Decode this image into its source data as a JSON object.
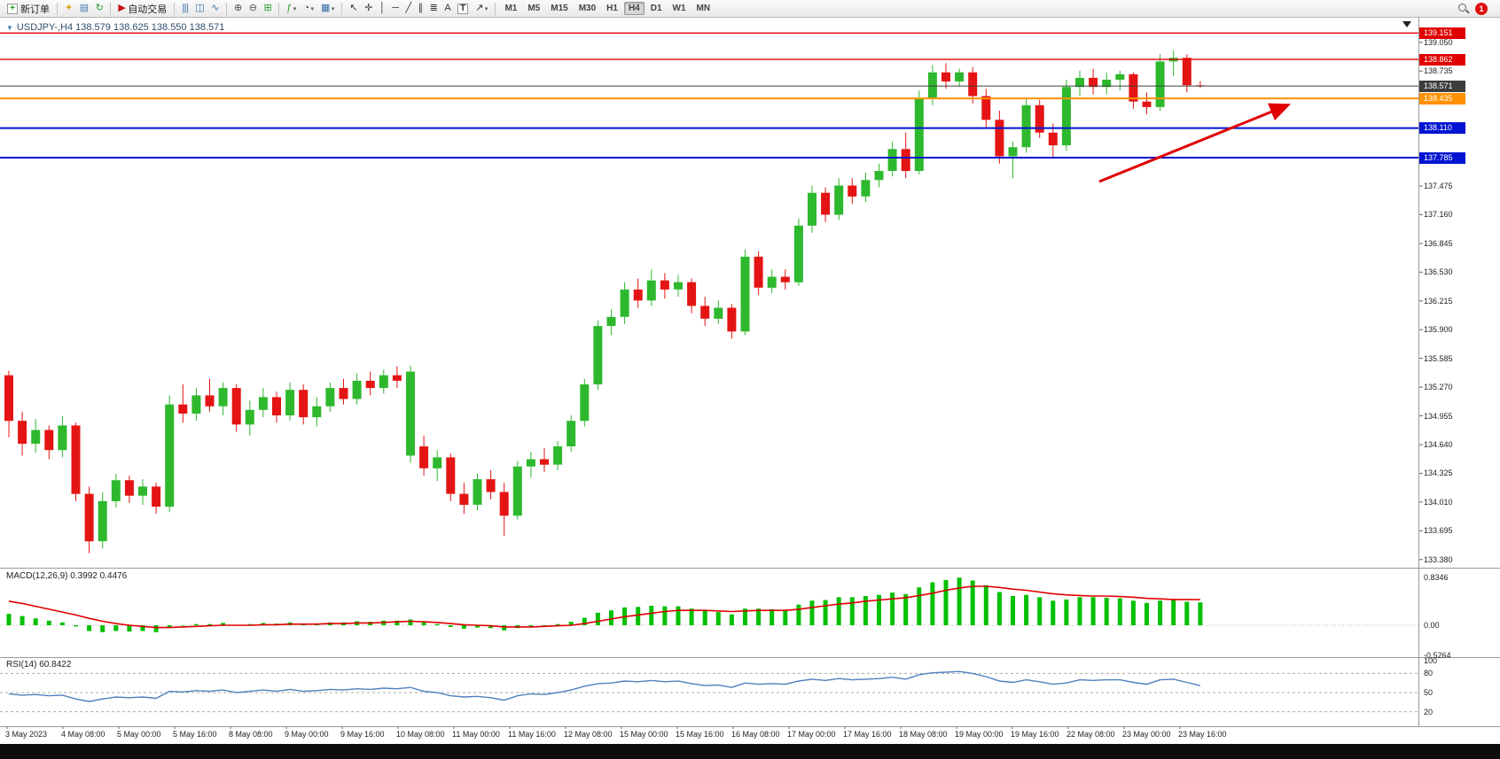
{
  "toolbar": {
    "caret_glyph": "▾",
    "groups": [
      [
        {
          "name": "new-order-button",
          "glyph": "+",
          "box": true,
          "color": "#18a018",
          "label": "新订单"
        }
      ],
      [
        {
          "name": "metaeditor-icon",
          "glyph": "✦",
          "color": "#d9a514"
        },
        {
          "name": "market-watch-icon",
          "glyph": "▤",
          "color": "#4a7ab5"
        },
        {
          "name": "refresh-icon",
          "glyph": "↻",
          "color": "#2b9a2b"
        }
      ],
      [
        {
          "name": "autotrading-button",
          "glyph": "▶",
          "color": "#c41414",
          "label": "自动交易"
        }
      ],
      [
        {
          "name": "bar-chart-icon",
          "glyph": "|||",
          "color": "#3a6ea8"
        },
        {
          "name": "candlestick-chart-icon",
          "glyph": "◫",
          "color": "#3a6ea8"
        },
        {
          "name": "line-chart-icon",
          "glyph": "∿",
          "color": "#3a6ea8"
        }
      ],
      [
        {
          "name": "zoom-in-icon",
          "glyph": "⊕",
          "color": "#4d4d4d"
        },
        {
          "name": "zoom-out-icon",
          "glyph": "⊖",
          "color": "#4d4d4d"
        },
        {
          "name": "tile-windows-icon",
          "glyph": "⊞",
          "color": "#2b9a2b"
        }
      ],
      [
        {
          "name": "indicators-icon",
          "glyph": "ƒ",
          "color": "#2b9a2b",
          "drop": true
        },
        {
          "name": "periods-icon",
          "glyph": "◔",
          "color": "#4d4d4d",
          "drop": true
        },
        {
          "name": "templates-icon",
          "glyph": "▦",
          "color": "#3a6ea8",
          "drop": true
        }
      ],
      [
        {
          "name": "cursor-icon",
          "glyph": "↖",
          "color": "#333333"
        },
        {
          "name": "crosshair-icon",
          "glyph": "✛",
          "color": "#333333"
        },
        {
          "name": "vertical-line-icon",
          "glyph": "│",
          "color": "#333333"
        },
        {
          "name": "horizontal-line-icon",
          "glyph": "─",
          "color": "#333333"
        },
        {
          "name": "trendline-icon",
          "glyph": "╱",
          "color": "#333333"
        },
        {
          "name": "channel-icon",
          "glyph": "∥",
          "color": "#333333"
        },
        {
          "name": "fibonacci-icon",
          "glyph": "≣",
          "color": "#333333"
        },
        {
          "name": "text-icon",
          "glyph": "A",
          "color": "#333333"
        },
        {
          "name": "text-label-icon",
          "glyph": "T",
          "box": true,
          "color": "#333333"
        },
        {
          "name": "arrow-objects-icon",
          "glyph": "↗",
          "color": "#333333",
          "drop": true
        }
      ],
      [
        {
          "name": "tf-m1",
          "type": "tf",
          "label": "M1"
        },
        {
          "name": "tf-m5",
          "type": "tf",
          "label": "M5"
        },
        {
          "name": "tf-m15",
          "type": "tf",
          "label": "M15"
        },
        {
          "name": "tf-m30",
          "type": "tf",
          "label": "M30"
        },
        {
          "name": "tf-h1",
          "type": "tf",
          "label": "H1"
        },
        {
          "name": "tf-h4",
          "type": "tf",
          "label": "H4",
          "active": true
        },
        {
          "name": "tf-d1",
          "type": "tf",
          "label": "D1"
        },
        {
          "name": "tf-w1",
          "type": "tf",
          "label": "W1"
        },
        {
          "name": "tf-mn",
          "type": "tf",
          "label": "MN"
        }
      ]
    ],
    "right_items": [
      {
        "name": "search-icon",
        "type": "magnifier"
      },
      {
        "name": "notification-badge",
        "type": "badge",
        "label": "1",
        "color": "#e01010"
      }
    ]
  },
  "chart": {
    "title": "USDJPY-,H4 138.579 138.625 138.550 138.571",
    "title_marker": "▼",
    "symbol": "USDJPY-",
    "period": "H4",
    "open": "138.579",
    "high": "138.625",
    "low": "138.550",
    "close": "138.571",
    "up_color": "#2eb82e",
    "down_color": "#e41414",
    "price_axis": [
      "139.050",
      "138.735",
      "138.420",
      "138.105",
      "137.790",
      "137.475",
      "137.160",
      "136.845",
      "136.530",
      "136.215",
      "135.900",
      "135.585",
      "135.270",
      "134.955",
      "134.640",
      "134.325",
      "134.010",
      "133.695",
      "133.380"
    ],
    "levels": [
      {
        "name": "resistance-line-1",
        "value": "139.151",
        "color": "#e00000",
        "width": 1.4
      },
      {
        "name": "resistance-line-2",
        "value": "138.862",
        "color": "#e00000",
        "width": 1.4
      },
      {
        "name": "bid-price-line",
        "value": "138.571",
        "color": "#3d3d3d",
        "width": 1
      },
      {
        "name": "support-line-orange",
        "value": "138.435",
        "color": "#ff9000",
        "width": 2
      },
      {
        "name": "support-line-blue-1",
        "value": "138.110",
        "color": "#0014d2",
        "width": 2
      },
      {
        "name": "support-line-blue-2",
        "value": "137.785",
        "color": "#0014d2",
        "width": 2
      }
    ],
    "arrow": {
      "color": "#e00000"
    }
  },
  "macd": {
    "label": "MACD(12,26,9)",
    "value_main": "0.3992",
    "value_signal": "0.4476",
    "axis": [
      "0.8346",
      "0.00",
      "-0.5264"
    ],
    "histogram_color": "#00c000",
    "signal_color": "#e00000"
  },
  "rsi": {
    "label": "RSI(14)",
    "value": "60.8422",
    "axis": [
      "100",
      "80",
      "50",
      "20"
    ],
    "levels": [
      80,
      50,
      20
    ],
    "line_color": "#4f81bd"
  },
  "chart_data": {
    "type": "candlestick",
    "symbol": "USDJPY-",
    "timeframe": "H4",
    "title": "USDJPY-,H4",
    "ohlc_current": {
      "open": 138.579,
      "high": 138.625,
      "low": 138.55,
      "close": 138.571
    },
    "ylim": [
      133.3,
      139.3
    ],
    "hlines": [
      139.151,
      138.862,
      138.571,
      138.435,
      138.11,
      137.785
    ],
    "x_labels": [
      "3 May 2023",
      "4 May 08:00",
      "5 May 00:00",
      "5 May 16:00",
      "8 May 08:00",
      "9 May 00:00",
      "9 May 16:00",
      "10 May 08:00",
      "11 May 00:00",
      "11 May 16:00",
      "12 May 08:00",
      "15 May 00:00",
      "15 May 16:00",
      "16 May 08:00",
      "17 May 00:00",
      "17 May 16:00",
      "18 May 08:00",
      "19 May 00:00",
      "19 May 16:00",
      "22 May 08:00",
      "23 May 00:00",
      "23 May 16:00"
    ],
    "candles": [
      [
        135.4,
        135.45,
        134.72,
        134.9
      ],
      [
        134.9,
        135.0,
        134.52,
        134.65
      ],
      [
        134.65,
        134.92,
        134.55,
        134.8
      ],
      [
        134.8,
        134.85,
        134.48,
        134.58
      ],
      [
        134.58,
        134.95,
        134.5,
        134.85
      ],
      [
        134.85,
        134.88,
        134.02,
        134.1
      ],
      [
        134.1,
        134.18,
        133.45,
        133.58
      ],
      [
        133.58,
        134.12,
        133.5,
        134.02
      ],
      [
        134.02,
        134.32,
        133.95,
        134.25
      ],
      [
        134.25,
        134.3,
        134.0,
        134.08
      ],
      [
        134.08,
        134.26,
        133.98,
        134.18
      ],
      [
        134.18,
        134.22,
        133.88,
        133.96
      ],
      [
        133.96,
        135.18,
        133.9,
        135.08
      ],
      [
        135.08,
        135.3,
        134.88,
        134.98
      ],
      [
        134.98,
        135.26,
        134.9,
        135.18
      ],
      [
        135.18,
        135.36,
        135.0,
        135.06
      ],
      [
        135.06,
        135.32,
        134.96,
        135.26
      ],
      [
        135.26,
        135.3,
        134.78,
        134.86
      ],
      [
        134.86,
        135.12,
        134.74,
        135.02
      ],
      [
        135.02,
        135.26,
        134.94,
        135.16
      ],
      [
        135.16,
        135.22,
        134.88,
        134.96
      ],
      [
        134.96,
        135.32,
        134.9,
        135.24
      ],
      [
        135.24,
        135.3,
        134.86,
        134.94
      ],
      [
        134.94,
        135.16,
        134.84,
        135.06
      ],
      [
        135.06,
        135.32,
        135.0,
        135.26
      ],
      [
        135.26,
        135.36,
        135.08,
        135.14
      ],
      [
        135.14,
        135.42,
        135.08,
        135.34
      ],
      [
        135.34,
        135.44,
        135.18,
        135.26
      ],
      [
        135.26,
        135.46,
        135.2,
        135.4
      ],
      [
        135.4,
        135.5,
        135.26,
        135.34
      ],
      [
        134.52,
        135.5,
        134.44,
        135.44
      ],
      [
        134.62,
        134.74,
        134.3,
        134.38
      ],
      [
        134.38,
        134.58,
        134.24,
        134.5
      ],
      [
        134.5,
        134.54,
        134.02,
        134.1
      ],
      [
        134.1,
        134.22,
        133.88,
        133.98
      ],
      [
        133.98,
        134.32,
        133.92,
        134.26
      ],
      [
        134.26,
        134.36,
        134.04,
        134.12
      ],
      [
        134.12,
        134.22,
        133.64,
        133.86
      ],
      [
        133.86,
        134.46,
        133.82,
        134.4
      ],
      [
        134.4,
        134.56,
        134.28,
        134.48
      ],
      [
        134.48,
        134.6,
        134.34,
        134.42
      ],
      [
        134.42,
        134.68,
        134.36,
        134.62
      ],
      [
        134.62,
        134.96,
        134.56,
        134.9
      ],
      [
        134.9,
        135.36,
        134.84,
        135.3
      ],
      [
        135.3,
        136.0,
        135.24,
        135.94
      ],
      [
        135.94,
        136.12,
        135.84,
        136.04
      ],
      [
        136.04,
        136.42,
        135.96,
        136.34
      ],
      [
        136.34,
        136.46,
        136.14,
        136.22
      ],
      [
        136.22,
        136.56,
        136.16,
        136.44
      ],
      [
        136.44,
        136.52,
        136.24,
        136.34
      ],
      [
        136.34,
        136.5,
        136.26,
        136.42
      ],
      [
        136.42,
        136.46,
        136.08,
        136.16
      ],
      [
        136.16,
        136.26,
        135.94,
        136.02
      ],
      [
        136.02,
        136.22,
        135.96,
        136.14
      ],
      [
        136.14,
        136.18,
        135.8,
        135.88
      ],
      [
        135.88,
        136.78,
        135.84,
        136.7
      ],
      [
        136.7,
        136.76,
        136.28,
        136.36
      ],
      [
        136.36,
        136.56,
        136.3,
        136.48
      ],
      [
        136.48,
        136.56,
        136.34,
        136.42
      ],
      [
        136.42,
        137.12,
        136.38,
        137.04
      ],
      [
        137.04,
        137.48,
        136.96,
        137.4
      ],
      [
        137.4,
        137.46,
        137.08,
        137.16
      ],
      [
        137.16,
        137.56,
        137.1,
        137.48
      ],
      [
        137.48,
        137.56,
        137.28,
        137.36
      ],
      [
        137.36,
        137.62,
        137.3,
        137.54
      ],
      [
        137.54,
        137.72,
        137.46,
        137.64
      ],
      [
        137.64,
        137.96,
        137.58,
        137.88
      ],
      [
        137.88,
        138.06,
        137.56,
        137.64
      ],
      [
        137.64,
        138.52,
        137.6,
        138.44
      ],
      [
        138.44,
        138.8,
        138.36,
        138.72
      ],
      [
        138.72,
        138.82,
        138.54,
        138.62
      ],
      [
        138.62,
        138.76,
        138.56,
        138.72
      ],
      [
        138.72,
        138.78,
        138.38,
        138.46
      ],
      [
        138.46,
        138.54,
        138.12,
        138.2
      ],
      [
        138.2,
        138.3,
        137.72,
        137.8
      ],
      [
        137.8,
        137.96,
        137.56,
        137.9
      ],
      [
        137.9,
        138.44,
        137.84,
        138.36
      ],
      [
        138.36,
        138.42,
        138.0,
        138.06
      ],
      [
        138.06,
        138.16,
        137.78,
        137.92
      ],
      [
        137.92,
        138.64,
        137.86,
        138.56
      ],
      [
        138.56,
        138.74,
        138.46,
        138.66
      ],
      [
        138.66,
        138.76,
        138.48,
        138.56
      ],
      [
        138.56,
        138.72,
        138.48,
        138.64
      ],
      [
        138.64,
        138.74,
        138.52,
        138.7
      ],
      [
        138.7,
        138.72,
        138.32,
        138.4
      ],
      [
        138.4,
        138.5,
        138.26,
        138.34
      ],
      [
        138.34,
        138.92,
        138.3,
        138.84
      ],
      [
        138.84,
        138.96,
        138.68,
        138.88
      ],
      [
        138.88,
        138.92,
        138.5,
        138.58
      ],
      [
        138.579,
        138.625,
        138.55,
        138.571
      ]
    ],
    "indicators": {
      "macd": {
        "params": "12,26,9",
        "current_main": 0.3992,
        "current_signal": 0.4476,
        "range": [
          -0.5264,
          0.8346
        ],
        "histogram": [
          0.2,
          0.16,
          0.12,
          0.08,
          0.05,
          -0.02,
          -0.1,
          -0.12,
          -0.1,
          -0.11,
          -0.1,
          -0.12,
          -0.04,
          -0.01,
          0.02,
          0.02,
          0.04,
          0.01,
          0.02,
          0.04,
          0.03,
          0.05,
          0.03,
          0.03,
          0.05,
          0.05,
          0.07,
          0.06,
          0.08,
          0.08,
          0.1,
          0.05,
          0.02,
          -0.03,
          -0.06,
          -0.04,
          -0.05,
          -0.09,
          -0.05,
          -0.02,
          -0.01,
          0.02,
          0.06,
          0.13,
          0.22,
          0.26,
          0.31,
          0.32,
          0.34,
          0.33,
          0.33,
          0.29,
          0.25,
          0.23,
          0.19,
          0.29,
          0.29,
          0.28,
          0.27,
          0.36,
          0.43,
          0.44,
          0.49,
          0.49,
          0.51,
          0.53,
          0.57,
          0.54,
          0.66,
          0.75,
          0.79,
          0.83,
          0.78,
          0.7,
          0.58,
          0.51,
          0.53,
          0.49,
          0.43,
          0.45,
          0.49,
          0.49,
          0.48,
          0.47,
          0.43,
          0.39,
          0.43,
          0.44,
          0.41,
          0.3992
        ],
        "signal": [
          0.42,
          0.38,
          0.33,
          0.28,
          0.23,
          0.18,
          0.12,
          0.07,
          0.03,
          0.0,
          -0.02,
          -0.04,
          -0.04,
          -0.03,
          -0.02,
          -0.01,
          0.0,
          0.0,
          0.0,
          0.01,
          0.01,
          0.02,
          0.02,
          0.02,
          0.03,
          0.03,
          0.04,
          0.04,
          0.05,
          0.06,
          0.07,
          0.06,
          0.05,
          0.03,
          0.01,
          0.0,
          -0.01,
          -0.03,
          -0.03,
          -0.03,
          -0.02,
          -0.01,
          0.0,
          0.03,
          0.07,
          0.11,
          0.15,
          0.18,
          0.21,
          0.24,
          0.26,
          0.26,
          0.26,
          0.25,
          0.24,
          0.25,
          0.26,
          0.26,
          0.26,
          0.28,
          0.31,
          0.34,
          0.37,
          0.39,
          0.42,
          0.44,
          0.46,
          0.48,
          0.52,
          0.56,
          0.61,
          0.65,
          0.68,
          0.68,
          0.66,
          0.63,
          0.61,
          0.58,
          0.55,
          0.53,
          0.52,
          0.51,
          0.51,
          0.5,
          0.49,
          0.47,
          0.46,
          0.45,
          0.45,
          0.4476
        ]
      },
      "rsi": {
        "params": "14",
        "current": 60.8422,
        "levels": [
          80,
          50,
          20
        ],
        "values": [
          48,
          46,
          47,
          45,
          46,
          40,
          36,
          40,
          43,
          42,
          43,
          41,
          52,
          51,
          53,
          52,
          54,
          50,
          52,
          54,
          52,
          55,
          52,
          53,
          55,
          54,
          56,
          55,
          57,
          56,
          58,
          52,
          50,
          45,
          43,
          44,
          42,
          38,
          45,
          48,
          47,
          50,
          54,
          60,
          64,
          65,
          68,
          67,
          69,
          67,
          68,
          64,
          61,
          62,
          58,
          65,
          63,
          64,
          63,
          68,
          71,
          69,
          72,
          70,
          71,
          72,
          74,
          71,
          78,
          81,
          82,
          83,
          80,
          75,
          68,
          66,
          70,
          67,
          63,
          65,
          70,
          69,
          70,
          70,
          66,
          63,
          70,
          71,
          66,
          60.8422
        ]
      }
    }
  }
}
